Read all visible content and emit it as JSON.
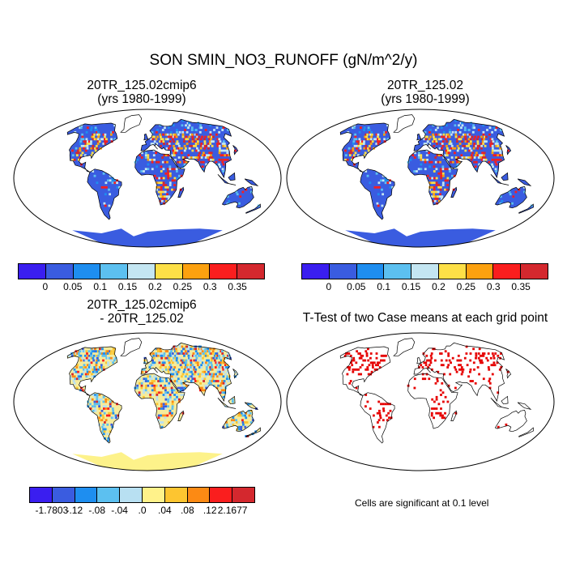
{
  "title": "SON SMIN_NO3_RUNOFF (gN/m^2/y)",
  "panels": [
    {
      "id": "top-left",
      "title_line1": "20TR_125.02cmip6",
      "title_line2": "(yrs 1980-1999)",
      "fill": "case"
    },
    {
      "id": "top-right",
      "title_line1": "20TR_125.02",
      "title_line2": "(yrs 1980-1999)",
      "fill": "case"
    },
    {
      "id": "bottom-left",
      "title_line1": "20TR_125.02cmip6",
      "title_line2": "- 20TR_125.02",
      "fill": "diff"
    },
    {
      "id": "bottom-right",
      "title_line1": "T-Test of two Case means at each grid point",
      "title_line2": "",
      "fill": "ttest"
    }
  ],
  "colorbar_case": {
    "colors": [
      "#3a1ef0",
      "#3a5ce0",
      "#1e8ef0",
      "#5cc0f0",
      "#c4e6f2",
      "#fde047",
      "#fca10f",
      "#fa1e1e",
      "#d4282e"
    ],
    "labels": [
      "0",
      "0.05",
      "0.1",
      "0.15",
      "0.2",
      "0.25",
      "0.3",
      "0.35"
    ]
  },
  "colorbar_diff": {
    "colors": [
      "#3a1ef0",
      "#3a5ce0",
      "#1e8ef0",
      "#5cc0f0",
      "#b8e0f2",
      "#fff28a",
      "#fdc530",
      "#fc8a14",
      "#fa1e1e",
      "#d4282e"
    ],
    "labels": [
      "-1.7803",
      "-.12",
      "-.08",
      "-.04",
      ".0",
      ".04",
      ".08",
      ".12",
      "2.1677"
    ]
  },
  "note": "Cells are significant at 0.1 level",
  "colors": {
    "land_case": "#3a5ce0",
    "land_diff": "#fdf28a",
    "sig": "#e60000"
  }
}
